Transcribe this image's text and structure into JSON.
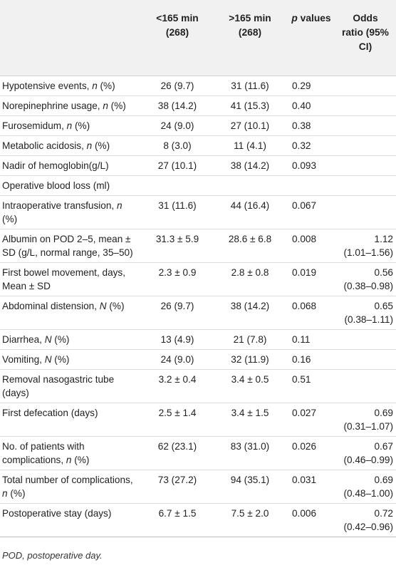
{
  "table": {
    "headers": {
      "group1_line1": "<165 min",
      "group1_line2": "(268)",
      "group2_line1": ">165 min",
      "group2_line2": "(268)",
      "p_italic": "p",
      "p_rest": " values",
      "or_line1": "Odds",
      "or_line2": "ratio (95%",
      "or_line3": "CI)"
    },
    "rows": [
      {
        "pre": "Hypotensive events, ",
        "it": "n",
        "post": " (%)",
        "g1": "26 (9.7)",
        "g2": "31 (11.6)",
        "p": "0.29",
        "or1": "",
        "or2": ""
      },
      {
        "pre": "Norepinephrine usage, ",
        "it": "n",
        "post": " (%)",
        "g1": "38 (14.2)",
        "g2": "41 (15.3)",
        "p": "0.40",
        "or1": "",
        "or2": ""
      },
      {
        "pre": "Furosemidum, ",
        "it": "n",
        "post": " (%)",
        "g1": "24 (9.0)",
        "g2": "27 (10.1)",
        "p": "0.38",
        "or1": "",
        "or2": ""
      },
      {
        "pre": "Metabolic acidosis, ",
        "it": "n",
        "post": " (%)",
        "g1": "8 (3.0)",
        "g2": "11 (4.1)",
        "p": "0.32",
        "or1": "",
        "or2": ""
      },
      {
        "pre": "Nadir of hemoglobin(g/L)",
        "it": "",
        "post": "",
        "g1": "27 (10.1)",
        "g2": "38 (14.2)",
        "p": "0.093",
        "or1": "",
        "or2": ""
      },
      {
        "pre": "Operative blood loss (ml)",
        "it": "",
        "post": "",
        "g1": "",
        "g2": "",
        "p": "",
        "or1": "",
        "or2": ""
      },
      {
        "pre": "Intraoperative transfusion, ",
        "it": "n",
        "post": " (%)",
        "g1": "31 (11.6)",
        "g2": "44 (16.4)",
        "p": "0.067",
        "or1": "",
        "or2": ""
      },
      {
        "pre": "Albumin on POD 2–5, mean ± SD (g/L, normal range, 35–50)",
        "it": "",
        "post": "",
        "g1": "31.3 ± 5.9",
        "g2": "28.6 ± 6.8",
        "p": "0.008",
        "or1": "1.12",
        "or2": "(1.01–1.56)"
      },
      {
        "pre": "First bowel movement, days, Mean ± SD",
        "it": "",
        "post": "",
        "g1": "2.3 ± 0.9",
        "g2": "2.8 ± 0.8",
        "p": "0.019",
        "or1": "0.56",
        "or2": "(0.38–0.98)"
      },
      {
        "pre": "Abdominal distension, ",
        "it": "N",
        "post": " (%)",
        "g1": "26 (9.7)",
        "g2": "38 (14.2)",
        "p": "0.068",
        "or1": "0.65",
        "or2": "(0.38–1.11)"
      },
      {
        "pre": "Diarrhea, ",
        "it": "N",
        "post": " (%)",
        "g1": "13 (4.9)",
        "g2": "21 (7.8)",
        "p": "0.11",
        "or1": "",
        "or2": ""
      },
      {
        "pre": "Vomiting, ",
        "it": "N",
        "post": " (%)",
        "g1": "24 (9.0)",
        "g2": "32 (11.9)",
        "p": "0.16",
        "or1": "",
        "or2": ""
      },
      {
        "pre": "Removal nasogastric tube (days)",
        "it": "",
        "post": "",
        "g1": "3.2 ± 0.4",
        "g2": "3.4 ± 0.5",
        "p": "0.51",
        "or1": "",
        "or2": ""
      },
      {
        "pre": "First defecation (days)",
        "it": "",
        "post": "",
        "g1": "2.5 ± 1.4",
        "g2": "3.4 ± 1.5",
        "p": "0.027",
        "or1": "0.69",
        "or2": "(0.31–1.07)"
      },
      {
        "pre": "No. of patients with complications, ",
        "it": "n",
        "post": " (%)",
        "g1": "62 (23.1)",
        "g2": "83 (31.0)",
        "p": "0.026",
        "or1": "0.67",
        "or2": "(0.46–0.99)"
      },
      {
        "pre": "Total number of complications, ",
        "it": "n",
        "post": " (%)",
        "g1": "73 (27.2)",
        "g2": "94 (35.1)",
        "p": "0.031",
        "or1": "0.69",
        "or2": "(0.48–1.00)"
      },
      {
        "pre": "Postoperative stay (days)",
        "it": "",
        "post": "",
        "g1": "6.7 ± 1.5",
        "g2": "7.5 ± 2.0",
        "p": "0.006",
        "or1": "0.72",
        "or2": "(0.42–0.96)"
      }
    ]
  },
  "footnote": "POD, postoperative day."
}
